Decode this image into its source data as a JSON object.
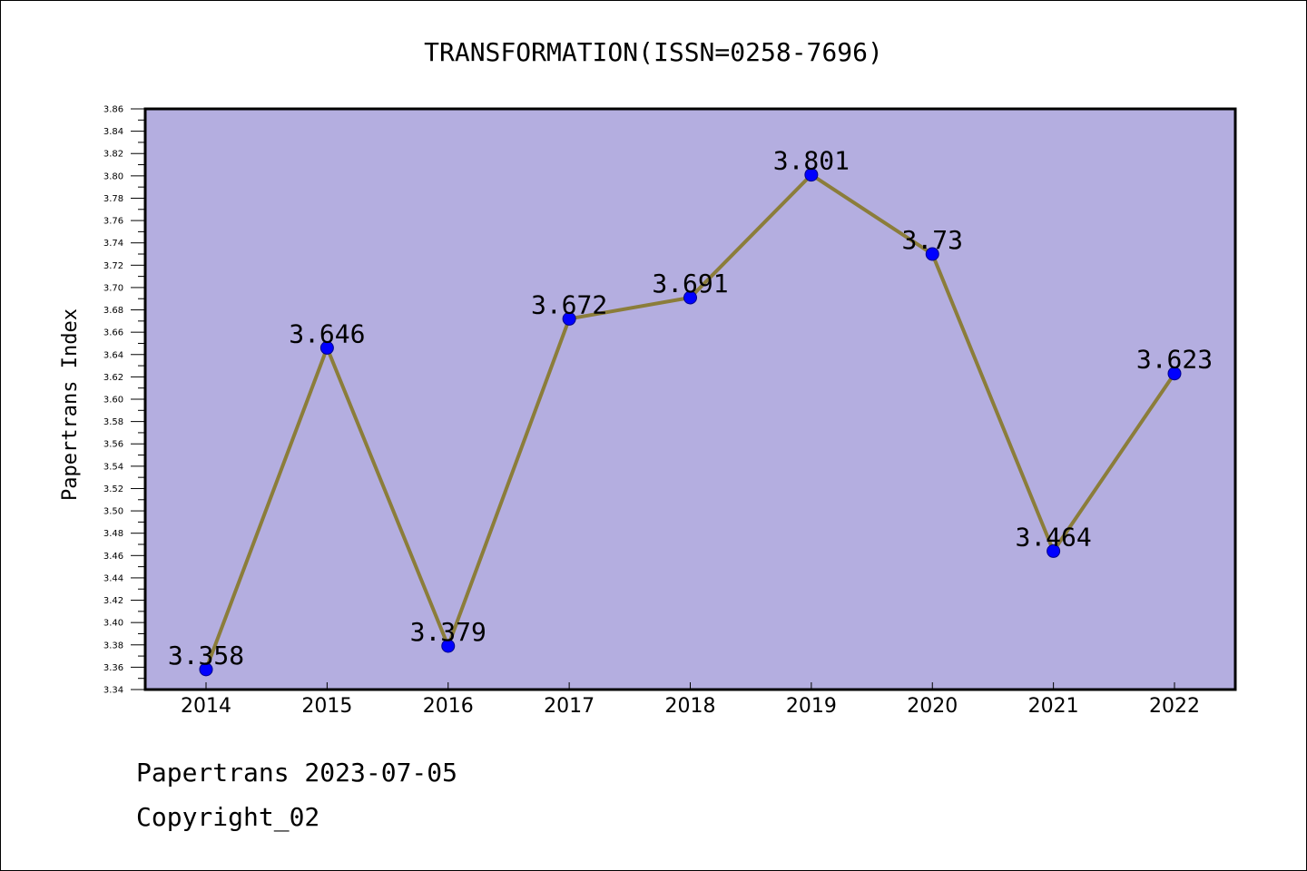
{
  "chart_data": {
    "type": "line",
    "title": "TRANSFORMATION(ISSN=0258-7696)",
    "ylabel": "Papertrans Index",
    "xlabel": "",
    "categories": [
      "2014",
      "2015",
      "2016",
      "2017",
      "2018",
      "2019",
      "2020",
      "2021",
      "2022"
    ],
    "series": [
      {
        "values": [
          3.358,
          3.646,
          3.379,
          3.672,
          3.691,
          3.801,
          3.73,
          3.464,
          3.623
        ],
        "labels": [
          "3.358",
          "3.646",
          "3.379",
          "3.672",
          "3.691",
          "3.801",
          "3.73",
          "3.464",
          "3.623"
        ]
      }
    ],
    "ylim": [
      3.34,
      3.86
    ],
    "yticks": [
      "3.34",
      "3.36",
      "3.38",
      "3.40",
      "3.42",
      "3.44",
      "3.46",
      "3.48",
      "3.50",
      "3.52",
      "3.54",
      "3.56",
      "3.58",
      "3.60",
      "3.62",
      "3.64",
      "3.66",
      "3.68",
      "3.70",
      "3.72",
      "3.74",
      "3.76",
      "3.78",
      "3.80",
      "3.82",
      "3.84",
      "3.86"
    ],
    "grid": false,
    "colors": {
      "plot_background": "#b4aee0",
      "line": "#8b7d3a",
      "marker": "#0000ff"
    }
  },
  "footer": {
    "line1": "Papertrans 2023-07-05",
    "line2": "Copyright_02"
  }
}
